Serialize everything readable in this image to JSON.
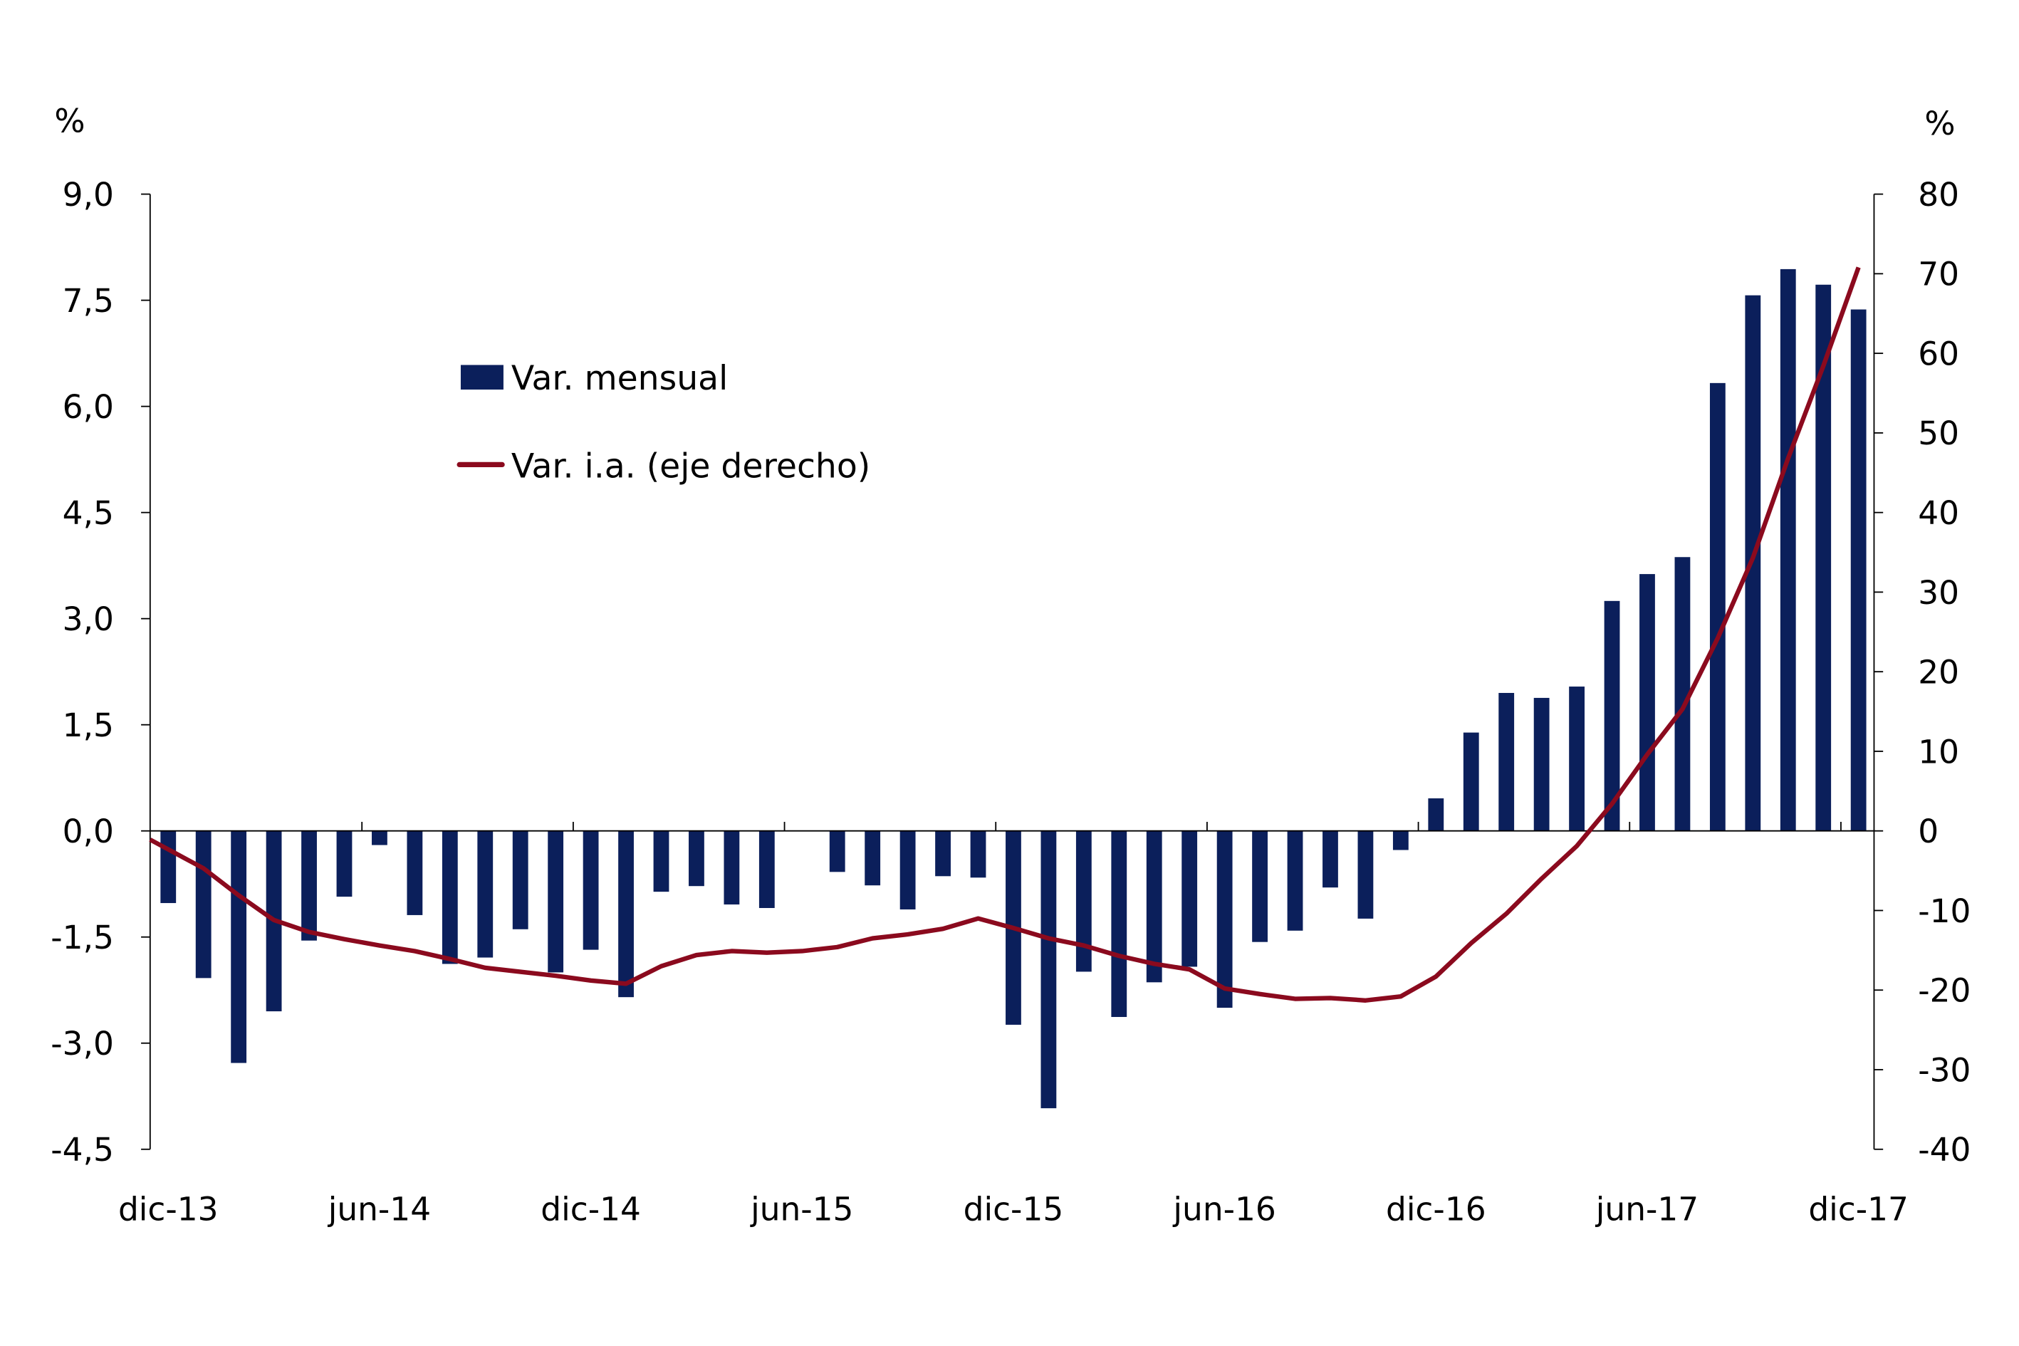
{
  "chart_data": {
    "type": "bar+line",
    "left_axis": {
      "unit_label": "%",
      "range": [
        -4.5,
        9.0
      ],
      "ticks": [
        "9,0",
        "7,5",
        "6,0",
        "4,5",
        "3,0",
        "1,5",
        "0,0",
        "-1,5",
        "-3,0",
        "-4,5"
      ],
      "tick_values": [
        9,
        7.5,
        6,
        4.5,
        3,
        1.5,
        0,
        -1.5,
        -3,
        -4.5
      ]
    },
    "right_axis": {
      "unit_label": "%",
      "range": [
        -40,
        80
      ],
      "ticks": [
        "80",
        "70",
        "60",
        "50",
        "40",
        "30",
        "20",
        "10",
        "0",
        "-10",
        "-20",
        "-30",
        "-40"
      ],
      "tick_values": [
        80,
        70,
        60,
        50,
        40,
        30,
        20,
        10,
        0,
        -10,
        -20,
        -30,
        -40
      ]
    },
    "x_tick_labels": [
      "dic-13",
      "jun-14",
      "dic-14",
      "jun-15",
      "dic-15",
      "jun-16",
      "dic-16",
      "jun-17",
      "dic-17"
    ],
    "x_tick_label_indices": [
      0,
      6,
      12,
      18,
      24,
      30,
      36,
      42,
      48
    ],
    "categories": [
      "dic-13",
      "ene-14",
      "feb-14",
      "mar-14",
      "abr-14",
      "may-14",
      "jun-14",
      "jul-14",
      "ago-14",
      "sep-14",
      "oct-14",
      "nov-14",
      "dic-14",
      "ene-15",
      "feb-15",
      "mar-15",
      "abr-15",
      "may-15",
      "jun-15",
      "jul-15",
      "ago-15",
      "sep-15",
      "oct-15",
      "nov-15",
      "dic-15",
      "ene-16",
      "feb-16",
      "mar-16",
      "abr-16",
      "may-16",
      "jun-16",
      "jul-16",
      "ago-16",
      "sep-16",
      "oct-16",
      "nov-16",
      "dic-16",
      "ene-17",
      "feb-17",
      "mar-17",
      "abr-17",
      "may-17",
      "jun-17",
      "jul-17",
      "ago-17",
      "sep-17",
      "oct-17",
      "nov-17",
      "dic-17"
    ],
    "series": [
      {
        "name": "Var. mensual",
        "type": "bar",
        "axis": "left",
        "color": "#0b1f5b",
        "values": [
          -1.02,
          -2.08,
          -3.28,
          -2.55,
          -1.55,
          -0.93,
          -0.2,
          -1.19,
          -1.88,
          -1.79,
          -1.39,
          -2.0,
          -1.68,
          -2.35,
          -0.86,
          -0.78,
          -1.04,
          -1.09,
          0.0,
          -0.58,
          -0.77,
          -1.11,
          -0.64,
          -0.66,
          -2.74,
          -3.92,
          -1.99,
          -2.63,
          -2.14,
          -1.92,
          -2.5,
          -1.57,
          -1.41,
          -0.8,
          -1.24,
          -0.27,
          0.46,
          1.39,
          1.95,
          1.88,
          2.04,
          3.25,
          3.63,
          3.87,
          6.33,
          7.57,
          7.94,
          7.72,
          7.37
        ]
      },
      {
        "name": "Var. i.a. (eje derecho)",
        "type": "line",
        "axis": "right",
        "color": "#8b0a1e",
        "values": [
          -1.1,
          -4.7,
          -8.1,
          -11.2,
          -12.7,
          -13.6,
          -14.4,
          -15.1,
          -16.1,
          -17.2,
          -17.7,
          -18.2,
          -18.8,
          -19.2,
          -17.0,
          -15.6,
          -15.1,
          -15.3,
          -15.1,
          -14.6,
          -13.5,
          -13.0,
          -12.3,
          -11.0,
          -12.2,
          -13.5,
          -14.4,
          -15.7,
          -16.7,
          -17.4,
          -19.8,
          -20.5,
          -21.1,
          -21.0,
          -21.3,
          -20.8,
          -18.3,
          -14.1,
          -10.4,
          -6.0,
          -1.9,
          3.4,
          9.6,
          15.3,
          24.2,
          34.3,
          46.8,
          58.4,
          70.8
        ]
      }
    ],
    "legend": {
      "placement": "top-left",
      "items": [
        "Var. mensual",
        "Var. i.a. (eje derecho)"
      ]
    },
    "grid": false
  }
}
